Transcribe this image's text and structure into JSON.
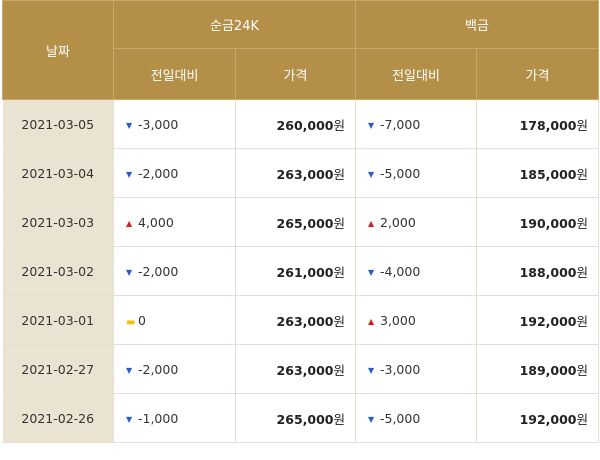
{
  "header": {
    "date_label": "날짜",
    "gold_label": "순금24K",
    "platinum_label": "백금",
    "change_label": "전일대비",
    "price_label": "가격",
    "unit": "원"
  },
  "rows": [
    {
      "date": "2021-03-05",
      "gold_dir": "down",
      "gold_change": "-3,000",
      "gold_price": "260,000",
      "plat_dir": "down",
      "plat_change": "-7,000",
      "plat_price": "178,000"
    },
    {
      "date": "2021-03-04",
      "gold_dir": "down",
      "gold_change": "-2,000",
      "gold_price": "263,000",
      "plat_dir": "down",
      "plat_change": "-5,000",
      "plat_price": "185,000"
    },
    {
      "date": "2021-03-03",
      "gold_dir": "up",
      "gold_change": "4,000",
      "gold_price": "265,000",
      "plat_dir": "up",
      "plat_change": "2,000",
      "plat_price": "190,000"
    },
    {
      "date": "2021-03-02",
      "gold_dir": "down",
      "gold_change": "-2,000",
      "gold_price": "261,000",
      "plat_dir": "down",
      "plat_change": "-4,000",
      "plat_price": "188,000"
    },
    {
      "date": "2021-03-01",
      "gold_dir": "same",
      "gold_change": "0",
      "gold_price": "263,000",
      "plat_dir": "up",
      "plat_change": "3,000",
      "plat_price": "192,000"
    },
    {
      "date": "2021-02-27",
      "gold_dir": "down",
      "gold_change": "-2,000",
      "gold_price": "263,000",
      "plat_dir": "down",
      "plat_change": "-3,000",
      "plat_price": "189,000"
    },
    {
      "date": "2021-02-26",
      "gold_dir": "down",
      "gold_change": "-1,000",
      "gold_price": "265,000",
      "plat_dir": "down",
      "plat_change": "-5,000",
      "plat_price": "192,000"
    }
  ],
  "colors": {
    "header_bg": "#b38f47",
    "date_col_bg": "#ebe3d1",
    "down": "#2b5bc8",
    "up": "#d62020",
    "same": "#f2c200"
  }
}
